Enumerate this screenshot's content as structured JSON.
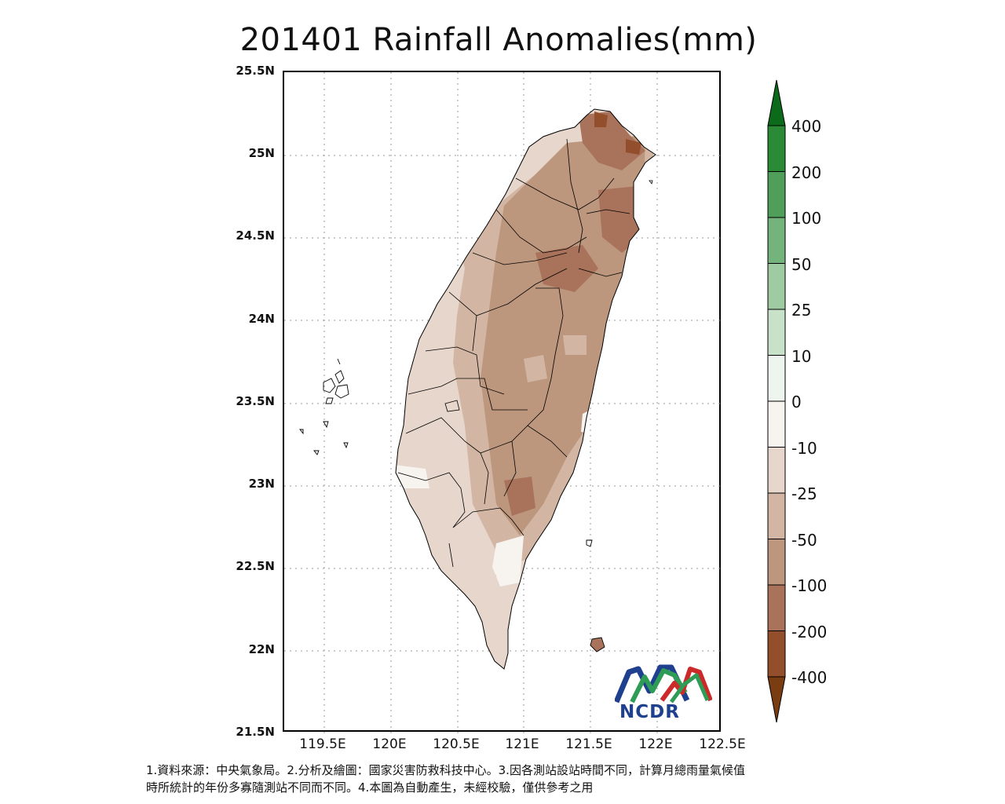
{
  "title": "201401 Rainfall Anomalies(mm)",
  "map": {
    "lat_ticks": [
      "25.5N",
      "25N",
      "24.5N",
      "24N",
      "23.5N",
      "23N",
      "22.5N",
      "22N",
      "21.5N"
    ],
    "lon_ticks": [
      "119.5E",
      "120E",
      "120.5E",
      "121E",
      "121.5E",
      "122E",
      "122.5E"
    ],
    "lat_range": [
      21.5,
      25.5
    ],
    "lon_range": [
      119.2,
      122.5
    ],
    "gridlines": "dotted"
  },
  "colorbar": {
    "labels": [
      "400",
      "200",
      "100",
      "50",
      "25",
      "10",
      "0",
      "-10",
      "-25",
      "-50",
      "-100",
      "-200",
      "-400"
    ],
    "colors": [
      "#0b6b1a",
      "#2a8a36",
      "#4f9e5a",
      "#74b37c",
      "#9fcba2",
      "#c8e2c9",
      "#eef5ee",
      "#f7f3ef",
      "#e6d6cb",
      "#d2b6a3",
      "#bc967d",
      "#a8735a",
      "#934f2c",
      "#7a3d12"
    ]
  },
  "logo": {
    "text": "NCDR"
  },
  "footnote": {
    "line1": "1.資料來源：中央氣象局。2.分析及繪圖：國家災害防救科技中心。3.因各測站設站時間不同，計算月總雨量氣候值",
    "line2": "時所統計的年份多寡隨測站不同而不同。4.本圖為自動產生，未經校驗，僅供參考之用"
  }
}
